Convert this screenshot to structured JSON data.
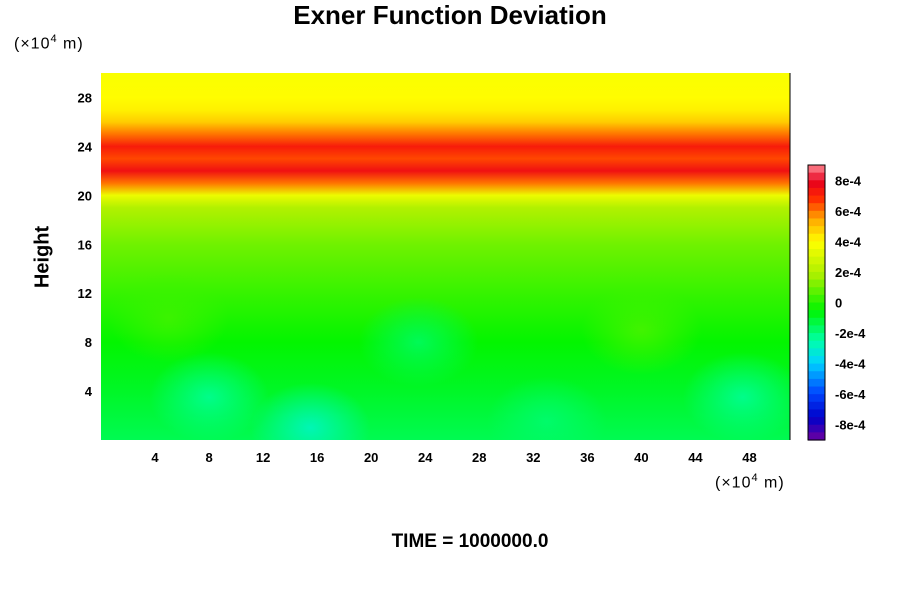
{
  "chart_data": {
    "type": "heatmap",
    "title": "Exner Function Deviation",
    "ylabel": "Height",
    "y_unit": "(×10",
    "y_unit_exp": "4",
    "y_unit_tail": " m)",
    "x_unit": "(×10",
    "x_unit_exp": "4",
    "x_unit_tail": " m)",
    "xlim": [
      0,
      51
    ],
    "ylim": [
      0,
      30
    ],
    "x_ticks": [
      4,
      8,
      12,
      16,
      20,
      24,
      28,
      32,
      36,
      40,
      44,
      48
    ],
    "y_ticks": [
      4,
      8,
      12,
      16,
      20,
      24,
      28
    ],
    "colorbar": {
      "range": [
        -0.0009,
        0.0009
      ],
      "ticks": [
        "8e-4",
        "6e-4",
        "4e-4",
        "2e-4",
        "0",
        "-2e-4",
        "-4e-4",
        "-6e-4",
        "-8e-4"
      ],
      "tick_values": [
        0.0008,
        0.0006,
        0.0004,
        0.0002,
        0,
        -0.0002,
        -0.0004,
        -0.0006,
        -0.0008
      ]
    },
    "profile": [
      {
        "height": 0,
        "value": -0.00015
      },
      {
        "height": 4,
        "value": -0.0001
      },
      {
        "height": 8,
        "value": -5e-05
      },
      {
        "height": 12,
        "value": 2e-05
      },
      {
        "height": 16,
        "value": 0.0001
      },
      {
        "height": 19,
        "value": 0.0002
      },
      {
        "height": 20,
        "value": 0.00035
      },
      {
        "height": 21,
        "value": 0.0006
      },
      {
        "height": 22,
        "value": 0.00075
      },
      {
        "height": 23,
        "value": 0.00065
      },
      {
        "height": 24,
        "value": 0.00072
      },
      {
        "height": 25,
        "value": 0.0006
      },
      {
        "height": 26,
        "value": 0.00048
      },
      {
        "height": 27,
        "value": 0.00042
      },
      {
        "height": 28,
        "value": 0.0004
      },
      {
        "height": 30,
        "value": 0.00038
      }
    ],
    "anomalies": [
      {
        "x": 15.5,
        "y": 1,
        "value": -0.00028
      },
      {
        "x": 8,
        "y": 3.5,
        "value": -0.00022
      },
      {
        "x": 47.5,
        "y": 3.5,
        "value": -0.00022
      },
      {
        "x": 33,
        "y": 1.5,
        "value": -0.00018
      },
      {
        "x": 23.5,
        "y": 8,
        "value": -0.00016
      },
      {
        "x": 40,
        "y": 9,
        "value": 4e-05
      },
      {
        "x": 5,
        "y": 10,
        "value": 3e-05
      }
    ]
  },
  "footer": {
    "time_label": "TIME = 1000000.0"
  }
}
